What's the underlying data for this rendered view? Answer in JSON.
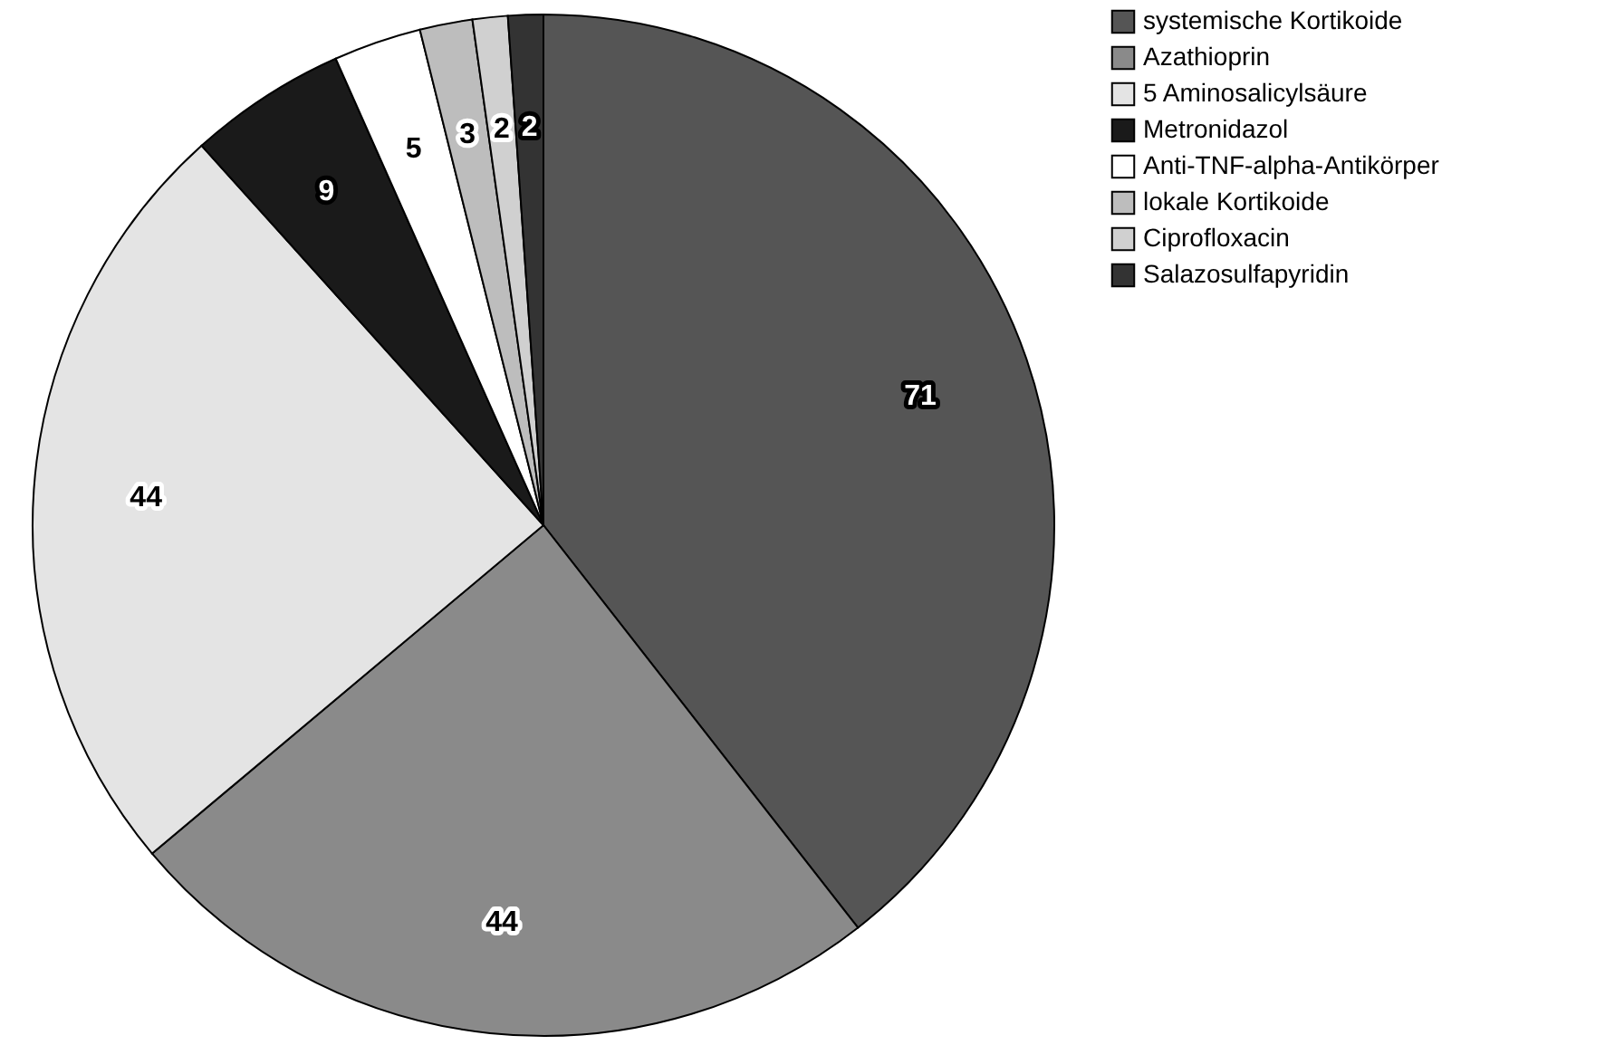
{
  "chart_data": {
    "type": "pie",
    "categories": [
      "systemische Kortikoide",
      "Azathioprin",
      "5 Aminosalicylsäure",
      "Metronidazol",
      "Anti-TNF-alpha-Antikörper",
      "lokale Kortikoide",
      "Ciprofloxacin",
      "Salazosulfapyridin"
    ],
    "values": [
      71,
      44,
      44,
      9,
      5,
      3,
      2,
      2
    ],
    "colors": [
      "#555555",
      "#8a8a8a",
      "#e4e4e4",
      "#1a1a1a",
      "#ffffff",
      "#bdbdbd",
      "#d0d0d0",
      "#333333"
    ],
    "data_labels": true,
    "legend": "top right"
  }
}
